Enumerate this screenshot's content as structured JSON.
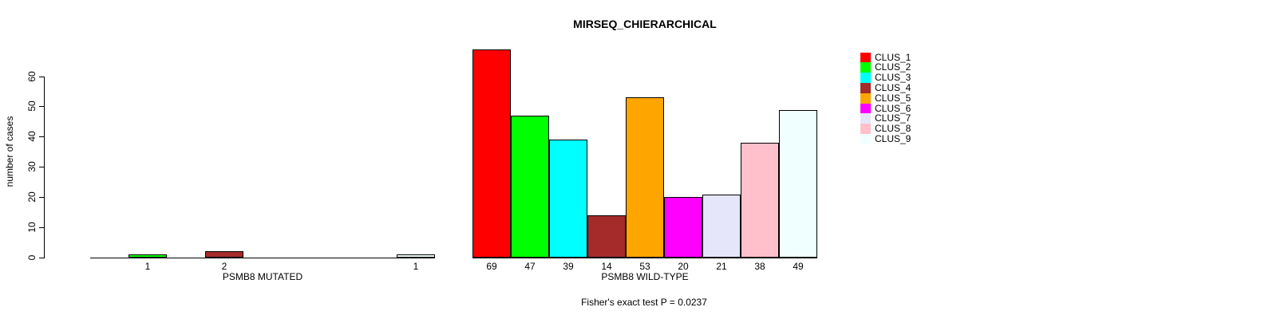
{
  "chart_data": {
    "type": "bar",
    "title": "MIRSEQ_CHIERARCHICAL",
    "ylabel": "number of cases",
    "xlabel": "",
    "ylim": [
      0,
      60
    ],
    "yticks": [
      0,
      10,
      20,
      30,
      40,
      50,
      60
    ],
    "grid": false,
    "bar_border_color": "#000000",
    "legend_position": "right",
    "legend": [
      {
        "label": "CLUS_1",
        "color": "#FF0000"
      },
      {
        "label": "CLUS_2",
        "color": "#00FF00"
      },
      {
        "label": "CLUS_3",
        "color": "#00FFFF"
      },
      {
        "label": "CLUS_4",
        "color": "#A52A2A"
      },
      {
        "label": "CLUS_5",
        "color": "#FFA500"
      },
      {
        "label": "CLUS_6",
        "color": "#FF00FF"
      },
      {
        "label": "CLUS_7",
        "color": "#E6E6FA"
      },
      {
        "label": "CLUS_8",
        "color": "#FFC0CB"
      },
      {
        "label": "CLUS_9",
        "color": "#F0FFFF"
      }
    ],
    "groups": [
      {
        "label": "PSMB8 MUTATED",
        "values": [
          0,
          1,
          0,
          2,
          0,
          0,
          0,
          0,
          1
        ]
      },
      {
        "label": "PSMB8 WILD-TYPE",
        "values": [
          69,
          47,
          39,
          14,
          53,
          20,
          21,
          38,
          49
        ]
      }
    ],
    "footnote": "Fisher's exact test P = 0.0237"
  }
}
